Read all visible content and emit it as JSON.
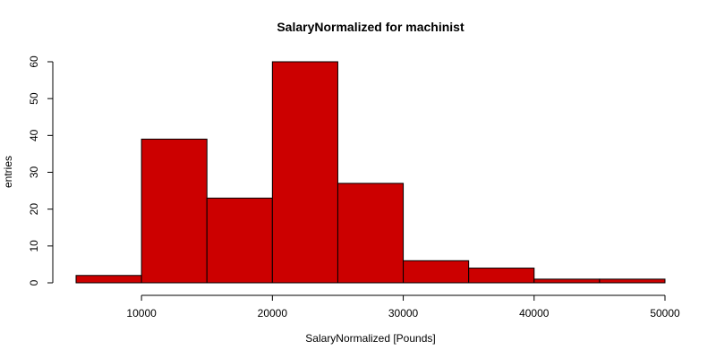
{
  "chart_data": {
    "type": "bar",
    "title": "SalaryNormalized for machinist",
    "xlabel": "SalaryNormalized [Pounds]",
    "ylabel": "entries",
    "bin_edges": [
      5000,
      10000,
      15000,
      20000,
      25000,
      30000,
      35000,
      40000,
      45000,
      50000
    ],
    "values": [
      2,
      39,
      23,
      60,
      27,
      6,
      4,
      1,
      1
    ],
    "xlim": [
      5000,
      50000
    ],
    "ylim": [
      0,
      60
    ],
    "xticks": [
      10000,
      20000,
      30000,
      40000,
      50000
    ],
    "yticks": [
      0,
      10,
      20,
      30,
      40,
      50,
      60
    ],
    "bar_color": "#cc0000",
    "grid": false
  }
}
